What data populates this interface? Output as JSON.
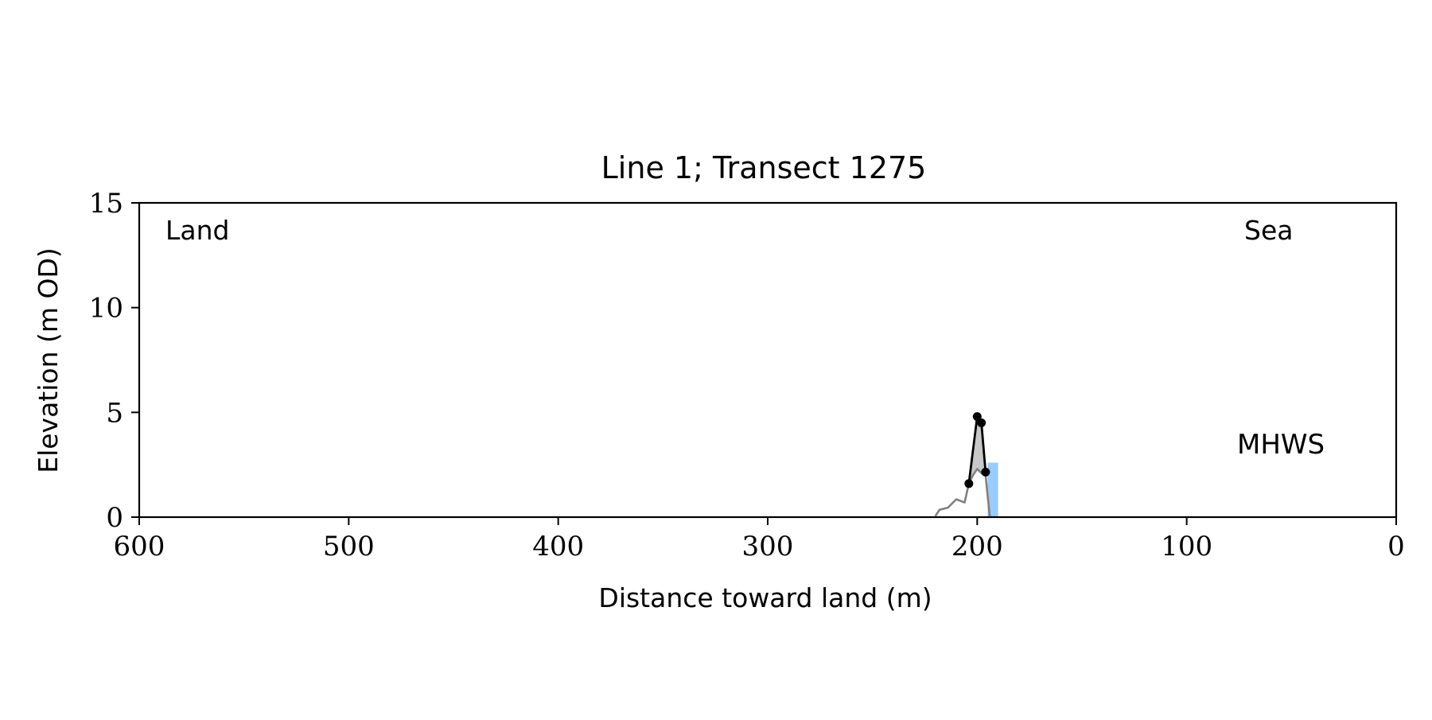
{
  "chart_data": {
    "type": "line",
    "title": "Line 1; Transect 1275",
    "xlabel": "Distance toward land (m)",
    "ylabel": "Elevation (m OD)",
    "xlim": [
      600,
      0
    ],
    "ylim": [
      0,
      15
    ],
    "x_reversed": true,
    "grid": false,
    "xticks": [
      600,
      500,
      400,
      300,
      200,
      100,
      0
    ],
    "yticks": [
      0,
      5,
      10,
      15
    ],
    "annotations": {
      "land": "Land",
      "sea": "Sea",
      "mhws": "MHWS"
    },
    "series": [
      {
        "style": "gray-line",
        "color": "#808080",
        "x": [
          220,
          218,
          214,
          210,
          206,
          204,
          202,
          200,
          198,
          196,
          195,
          194
        ],
        "y": [
          0.05,
          0.35,
          0.45,
          0.85,
          0.7,
          1.6,
          2.0,
          2.3,
          2.1,
          2.0,
          1.0,
          0.05
        ]
      },
      {
        "style": "black-line-markers",
        "color": "#000000",
        "x": [
          204,
          200,
          198,
          196
        ],
        "y": [
          1.6,
          4.8,
          4.5,
          2.15
        ]
      }
    ],
    "mhws_bar": {
      "color": "#99ccff",
      "x_start": 195,
      "x_end": 190,
      "y": 2.6
    },
    "colors": {
      "mhws_text": "#6a9fcd",
      "fill": "#c8c8c8"
    }
  }
}
